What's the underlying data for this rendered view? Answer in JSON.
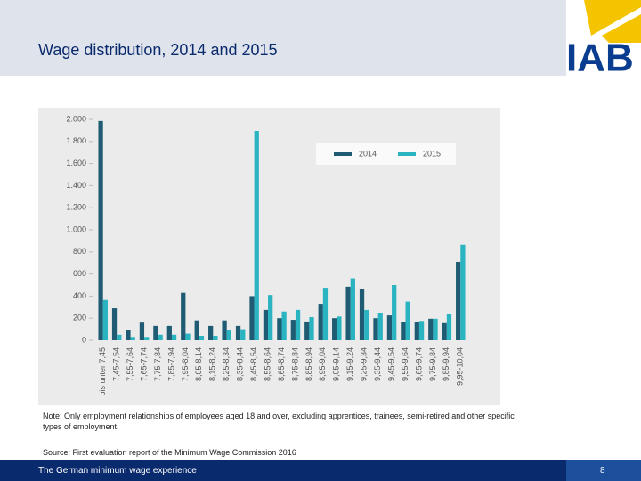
{
  "slide": {
    "title": "Wage distribution, 2014 and 2015",
    "logo": "IAB",
    "note": "Note: Only employment relationships of employees aged 18 and over, excluding apprentices, trainees, semi-retired and other specific types of employment.",
    "source": "Source: First evaluation report of the Minimum Wage Commission 2016",
    "footer": "The German minimum wage experience",
    "page_number": "8"
  },
  "chart_data": {
    "type": "bar",
    "categories": [
      "bis unter 7,45",
      "7,45-7,54",
      "7,55-7,64",
      "7,65-7,74",
      "7,75-7,84",
      "7,85-7,94",
      "7,95-8,04",
      "8,05-8,14",
      "8,15-8,24",
      "8,25-8,34",
      "8,35-8,44",
      "8,45-8,54",
      "8,55-8,64",
      "8,65-8,74",
      "8,75-8,84",
      "8,85-8,94",
      "8,95-9,04",
      "9,05-9,14",
      "9,15-9,24",
      "9,25-9,34",
      "9,35-9,44",
      "9,45-9,54",
      "9,55-9,64",
      "9,65-9,74",
      "9,75-9,84",
      "9,85-9,94",
      "9,95-10,04"
    ],
    "series": [
      {
        "name": "2014",
        "color": "#1f5c73",
        "values": [
          1985,
          290,
          90,
          160,
          130,
          130,
          430,
          180,
          130,
          180,
          130,
          400,
          275,
          200,
          185,
          170,
          330,
          200,
          485,
          460,
          200,
          225,
          165,
          165,
          195,
          155,
          710
        ]
      },
      {
        "name": "2015",
        "color": "#2ab3c0",
        "values": [
          365,
          50,
          30,
          30,
          50,
          50,
          60,
          40,
          40,
          90,
          100,
          1895,
          410,
          260,
          275,
          210,
          475,
          215,
          560,
          275,
          250,
          500,
          350,
          175,
          195,
          235,
          865
        ]
      }
    ],
    "ylim": [
      0,
      2000
    ],
    "yticks": [
      0,
      200,
      400,
      600,
      800,
      {
        "value": 1000,
        "label": "1.000"
      },
      {
        "value": 1200,
        "label": "1.200"
      },
      {
        "value": 1400,
        "label": "1.400"
      },
      {
        "value": 1600,
        "label": "1.600"
      },
      {
        "value": 1800,
        "label": "1.800"
      },
      {
        "value": 2000,
        "label": "2.000"
      }
    ],
    "legend": "upper right"
  }
}
